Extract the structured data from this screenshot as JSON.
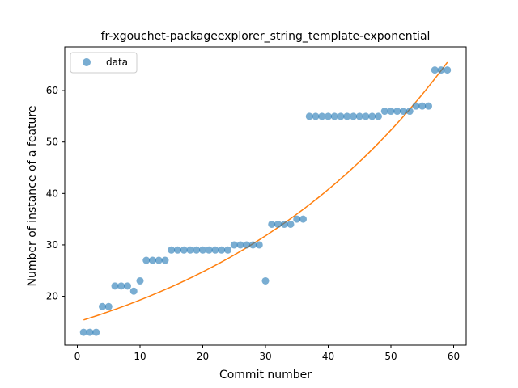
{
  "chart_data": {
    "type": "scatter",
    "title": "fr-xgouchet-packageexplorer_string_template-exponential",
    "xlabel": "Commit number",
    "ylabel": "Number of instance of a feature",
    "xlim": [
      -2,
      62
    ],
    "ylim": [
      10.5,
      68.5
    ],
    "xticks": [
      0,
      10,
      20,
      30,
      40,
      50,
      60
    ],
    "yticks": [
      20,
      30,
      40,
      50,
      60
    ],
    "grid": false,
    "legend_position": "top-left",
    "series": [
      {
        "name": "data",
        "kind": "points",
        "color": "#1f77b4",
        "alpha": 0.6,
        "x": [
          1,
          2,
          3,
          4,
          5,
          6,
          7,
          8,
          9,
          10,
          11,
          12,
          13,
          14,
          15,
          16,
          17,
          18,
          19,
          20,
          21,
          22,
          23,
          24,
          25,
          26,
          27,
          28,
          29,
          30,
          31,
          32,
          33,
          34,
          35,
          36,
          37,
          38,
          39,
          40,
          41,
          42,
          43,
          44,
          45,
          46,
          47,
          48,
          49,
          50,
          51,
          52,
          53,
          54,
          55,
          56,
          57,
          58,
          59
        ],
        "y": [
          13,
          13,
          13,
          18,
          18,
          22,
          22,
          22,
          21,
          23,
          27,
          27,
          27,
          27,
          29,
          29,
          29,
          29,
          29,
          29,
          29,
          29,
          29,
          29,
          30,
          30,
          30,
          30,
          30,
          23,
          34,
          34,
          34,
          34,
          35,
          35,
          55,
          55,
          55,
          55,
          55,
          55,
          55,
          55,
          55,
          55,
          55,
          55,
          56,
          56,
          56,
          56,
          56,
          57,
          57,
          57,
          64,
          64,
          64
        ]
      },
      {
        "kind": "fit-line",
        "color": "#ff7f0e",
        "x_start": 1,
        "x_end": 59,
        "y_start": 15.4,
        "y_end": 65.5
      }
    ]
  }
}
